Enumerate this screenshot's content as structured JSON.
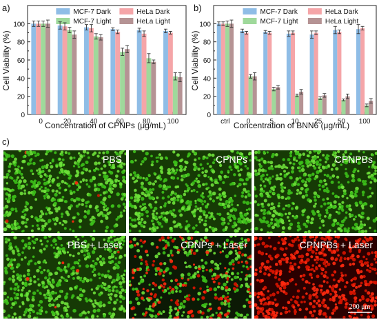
{
  "panel_letters": [
    "a)",
    "b)",
    "c)"
  ],
  "legend_entries": [
    "MCF-7 Dark",
    "HeLa Dark",
    "MCF-7 Light",
    "HeLa Light"
  ],
  "chart_data": [
    {
      "type": "bar",
      "panel": "a)",
      "xlabel": "Concentration of CPNPs (μg/mL)",
      "ylabel": "Cell Viability (%)",
      "ylim": [
        0,
        120
      ],
      "yticks": [
        "0",
        "20",
        "40",
        "60",
        "80",
        "100"
      ],
      "categories": [
        "0",
        "20",
        "40",
        "60",
        "80",
        "100"
      ],
      "legend_position": "top",
      "series": [
        {
          "name": "MCF-7 Dark",
          "color": "#8fbde6",
          "values": [
            100,
            98,
            96,
            94,
            93,
            92
          ],
          "errors": [
            3,
            4,
            3,
            1.5,
            2,
            2
          ]
        },
        {
          "name": "HeLa Dark",
          "color": "#f5a5a8",
          "values": [
            100,
            97,
            95,
            91,
            89,
            90
          ],
          "errors": [
            3,
            4,
            4,
            2,
            3,
            1.5
          ]
        },
        {
          "name": "MCF-7 Light",
          "color": "#9fd99b",
          "values": [
            100,
            93,
            86,
            69,
            62,
            42
          ],
          "errors": [
            3,
            3,
            3,
            4,
            5,
            4
          ]
        },
        {
          "name": "HeLa Light",
          "color": "#b59394",
          "values": [
            100,
            88,
            85,
            72,
            58,
            41
          ],
          "errors": [
            4,
            4,
            3,
            4,
            2,
            5
          ]
        }
      ]
    },
    {
      "type": "bar",
      "panel": "b)",
      "xlabel": "Concentration of BNN6 (μg/mL)",
      "ylabel": "Cell Viability (%)",
      "ylim": [
        0,
        120
      ],
      "yticks": [
        "0",
        "20",
        "40",
        "60",
        "80",
        "100"
      ],
      "categories": [
        "ctrl",
        "0",
        "5",
        "10",
        "25",
        "50",
        "100"
      ],
      "legend_position": "top",
      "series": [
        {
          "name": "MCF-7 Dark",
          "color": "#8fbde6",
          "values": [
            100,
            92,
            91,
            89,
            88,
            93,
            94
          ],
          "errors": [
            2,
            2,
            1.5,
            3,
            4,
            4,
            5
          ]
        },
        {
          "name": "HeLa Dark",
          "color": "#f5a5a8",
          "values": [
            100,
            90,
            90,
            90,
            90,
            91,
            95
          ],
          "errors": [
            2,
            1.5,
            1.5,
            2,
            2,
            2,
            2
          ]
        },
        {
          "name": "MCF-7 Light",
          "color": "#9fd99b",
          "values": [
            100,
            42,
            28,
            21,
            18,
            16,
            10
          ],
          "errors": [
            3,
            2,
            2,
            1.5,
            1.5,
            1,
            1.5
          ]
        },
        {
          "name": "HeLa Light",
          "color": "#b59394",
          "values": [
            100,
            42,
            30,
            25,
            21,
            20,
            15
          ],
          "errors": [
            4,
            4,
            2,
            2.5,
            2,
            2.5,
            2.5
          ]
        }
      ]
    }
  ],
  "micrographs": [
    {
      "label": "PBS",
      "stain": "green",
      "green_density": 1.0,
      "red_density": 0.01
    },
    {
      "label": "CPNPs",
      "stain": "green",
      "green_density": 1.0,
      "red_density": 0.0
    },
    {
      "label": "CPNPBs",
      "stain": "green",
      "green_density": 1.0,
      "red_density": 0.0
    },
    {
      "label": "PBS + Laser",
      "stain": "green",
      "green_density": 1.0,
      "red_density": 0.03
    },
    {
      "label": "CPNPs + Laser",
      "stain": "mixed",
      "green_density": 0.55,
      "red_density": 0.35
    },
    {
      "label": "CPNPBs + Laser",
      "stain": "red",
      "green_density": 0.0,
      "red_density": 1.0
    }
  ],
  "scale_bar_label": "200 μm"
}
